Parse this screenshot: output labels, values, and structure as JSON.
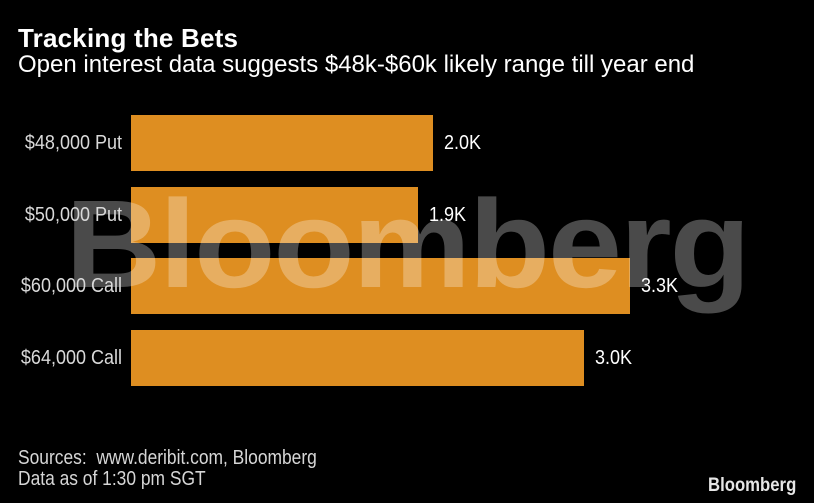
{
  "title": "Tracking the Bets",
  "subtitle": "Open interest data suggests $48k-$60k likely range till year end",
  "chart_data": {
    "type": "bar",
    "orientation": "horizontal",
    "categories": [
      "$48,000 Put",
      "$50,000 Put",
      "$60,000 Call",
      "$64,000 Call"
    ],
    "values": [
      2.0,
      1.9,
      3.3,
      3.0
    ],
    "value_labels": [
      "2.0K",
      "1.9K",
      "3.3K",
      "3.0K"
    ],
    "unit": "K contracts",
    "xlim": [
      0,
      4.5
    ],
    "grid": false,
    "legend": false,
    "bar_color": "#DE8E21"
  },
  "watermark": "Bloomberg",
  "footer": {
    "sources": "Sources:  www.deribit.com, Bloomberg",
    "note": "Data as of 1:30 pm SGT",
    "logo": "Bloomberg"
  },
  "colors": {
    "background": "#000000",
    "bar": "#DE8E21",
    "text_primary": "#FFFFFF",
    "text_secondary": "#D6D6D6",
    "watermark": "rgba(255,255,255,0.29)"
  }
}
